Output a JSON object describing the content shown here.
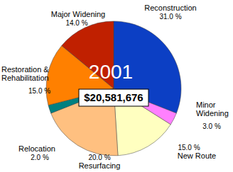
{
  "chart_data": {
    "type": "pie",
    "title": "2001",
    "subtitle": "$20,581,676",
    "categories": [
      "Reconstruction",
      "Minor Widening",
      "New Route",
      "Resurfacing",
      "Relocation",
      "Restoration & Rehabilitation",
      "Major Widening"
    ],
    "values": [
      31,
      3,
      15,
      20,
      2,
      15,
      14
    ],
    "value_labels": [
      "31.0 %",
      "3.0 %",
      "15.0 %",
      "20.0 %",
      "2.0 %",
      "15.0 %",
      "14.0 %"
    ],
    "colors": [
      "#0c3fc4",
      "#ff80ff",
      "#ffffc0",
      "#ffc080",
      "#008080",
      "#ff8000",
      "#c02000"
    ],
    "data_labels": true
  }
}
